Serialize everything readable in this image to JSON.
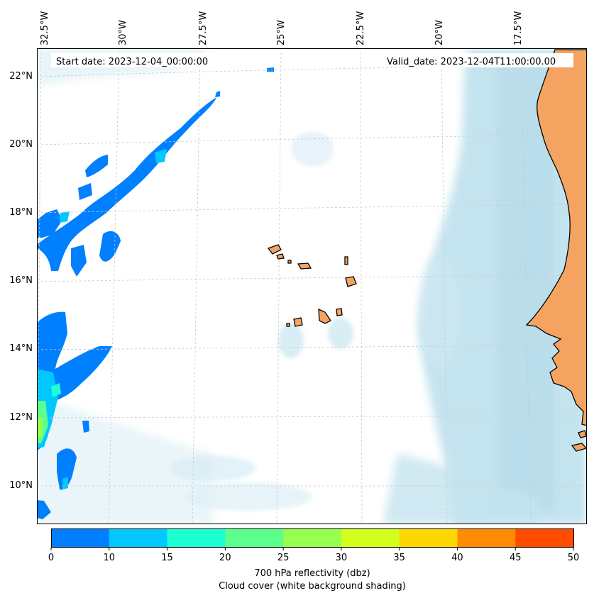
{
  "map": {
    "start_label": "Start date: 2023-12-04_00:00:00",
    "valid_label": "Valid_date: 2023-12-04T11:00:00.00",
    "lon_labels": [
      "32.5°W",
      "30°W",
      "27.5°W",
      "25°W",
      "22.5°W",
      "20°W",
      "17.5°W"
    ],
    "lat_labels": [
      "22°N",
      "20°N",
      "18°N",
      "16°N",
      "14°N",
      "12°N",
      "10°N"
    ],
    "colors": {
      "land": "#f4a460",
      "cloud": "#add8e6",
      "grid": "#c8c8c8"
    }
  },
  "colorbar": {
    "ticks": [
      "0",
      "10",
      "15",
      "20",
      "25",
      "30",
      "35",
      "40",
      "45",
      "50"
    ],
    "colors": [
      "#0080ff",
      "#00c8ff",
      "#1effd2",
      "#5aff8c",
      "#96ff50",
      "#d2ff1e",
      "#ffd700",
      "#ff8c00",
      "#ff4b00"
    ],
    "label_line1": "700 hPa reflectivity (dbz)",
    "label_line2": "Cloud cover (white background shading)"
  }
}
